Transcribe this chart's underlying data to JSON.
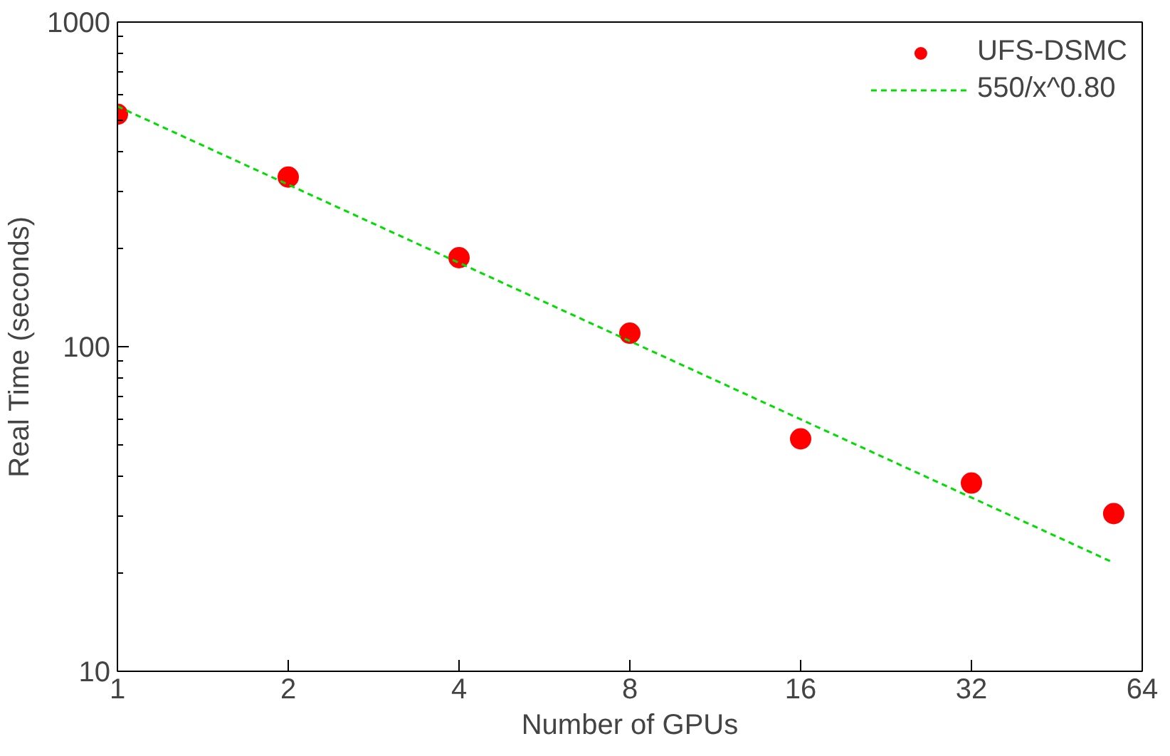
{
  "chart_data": {
    "type": "scatter",
    "xlabel": "Number of GPUs",
    "ylabel": "Real Time (seconds)",
    "log": "xy",
    "xlim": [
      1,
      64
    ],
    "xticks": [
      1,
      2,
      4,
      8,
      16,
      32,
      64
    ],
    "ylim": [
      10,
      1000
    ],
    "yticks": [
      10,
      100,
      1000
    ],
    "grid": false,
    "legend": "top right",
    "series": [
      {
        "name": "UFS-DSMC",
        "color": "#ff0000",
        "marker": "circle",
        "x": [
          1,
          2,
          4,
          8,
          16,
          32,
          57
        ],
        "values": [
          520,
          333,
          188,
          110,
          52,
          38,
          30.6
        ]
      },
      {
        "name": "550/x^0.80",
        "type": "line",
        "color": "#00dd00",
        "line_style": "dashed",
        "x": [
          1,
          57
        ],
        "values": [
          550,
          21.6
        ]
      }
    ]
  }
}
